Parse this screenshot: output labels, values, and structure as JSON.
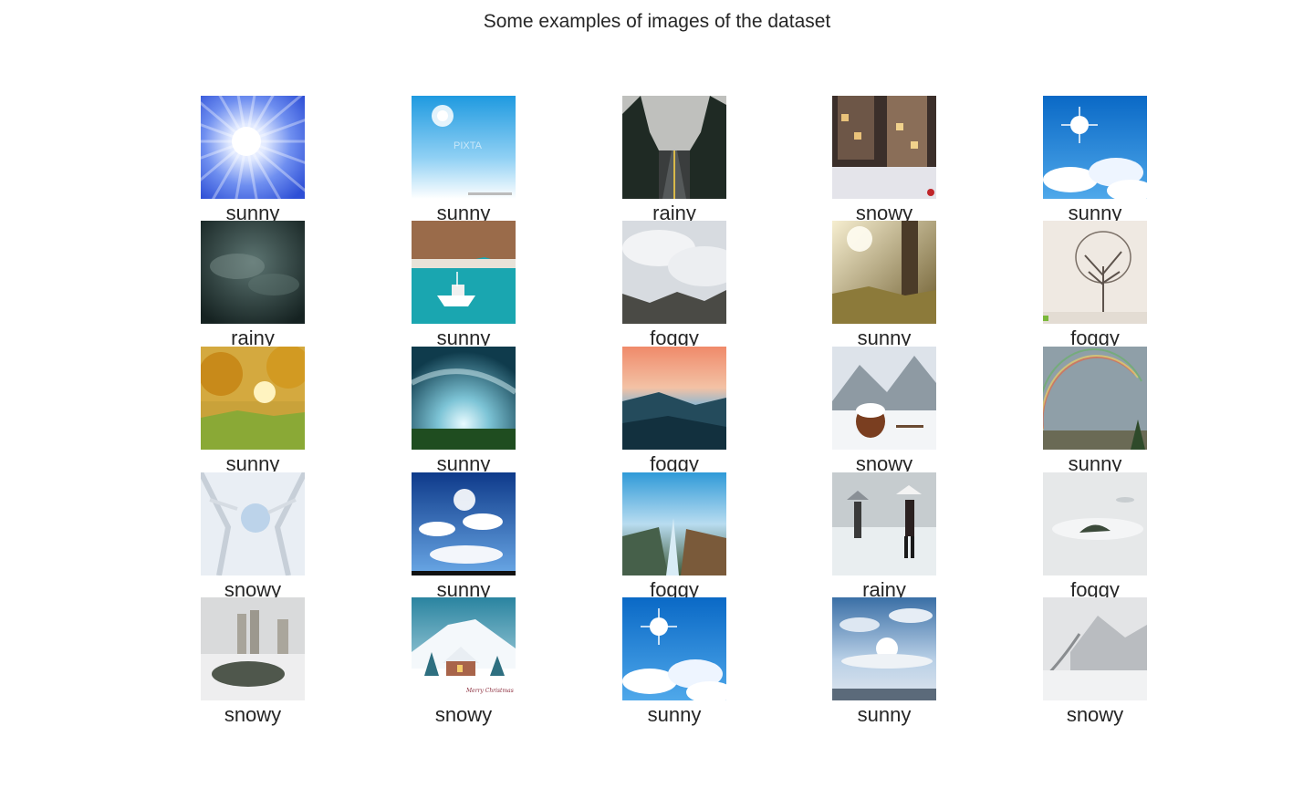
{
  "title": "Some examples of images of the dataset",
  "grid": [
    [
      {
        "label": "sunny",
        "scene": "sun-burst"
      },
      {
        "label": "sunny",
        "scene": "sun-sky-watermark",
        "watermark": "PIXTA"
      },
      {
        "label": "rainy",
        "scene": "forest-road"
      },
      {
        "label": "snowy",
        "scene": "snowy-street-night"
      },
      {
        "label": "sunny",
        "scene": "sun-clouds"
      }
    ],
    [
      {
        "label": "rainy",
        "scene": "dark-storm"
      },
      {
        "label": "sunny",
        "scene": "boat-turquoise-water"
      },
      {
        "label": "foggy",
        "scene": "fog-valley"
      },
      {
        "label": "sunny",
        "scene": "sun-through-trees"
      },
      {
        "label": "foggy",
        "scene": "misty-tree"
      }
    ],
    [
      {
        "label": "sunny",
        "scene": "autumn-park-sun"
      },
      {
        "label": "sunny",
        "scene": "sky-swirl-field"
      },
      {
        "label": "foggy",
        "scene": "sunset-fog-mountains"
      },
      {
        "label": "snowy",
        "scene": "snow-cabin"
      },
      {
        "label": "sunny",
        "scene": "rainbow-town"
      }
    ],
    [
      {
        "label": "snowy",
        "scene": "snowy-branches"
      },
      {
        "label": "sunny",
        "scene": "clouds-blue-sun"
      },
      {
        "label": "foggy",
        "scene": "fog-river-aerial"
      },
      {
        "label": "rainy",
        "scene": "rain-umbrella"
      },
      {
        "label": "foggy",
        "scene": "fog-island"
      }
    ],
    [
      {
        "label": "snowy",
        "scene": "city-snow-pond"
      },
      {
        "label": "snowy",
        "scene": "christmas-cottage",
        "caption_art": "Merry Christmas"
      },
      {
        "label": "sunny",
        "scene": "sun-clouds"
      },
      {
        "label": "sunny",
        "scene": "sun-cloud-horizon"
      },
      {
        "label": "snowy",
        "scene": "snow-mountain-road"
      }
    ]
  ]
}
